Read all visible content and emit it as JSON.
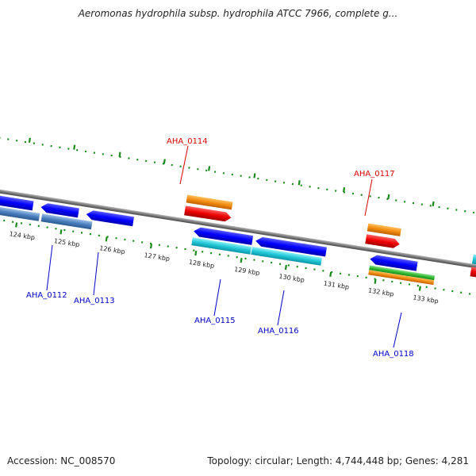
{
  "title": "Aeromonas hydrophila subsp. hydrophila ATCC 7966, complete g...",
  "footer": {
    "accession": "Accession: NC_008570",
    "summary": "Topology: circular; Length: 4,744,448 bp; Genes: 4,281"
  },
  "ticks": [
    "124 kbp",
    "125 kbp",
    "126 kbp",
    "127 kbp",
    "128 kbp",
    "129 kbp",
    "130 kbp",
    "131 kbp",
    "132 kbp",
    "133 kbp"
  ],
  "labels": {
    "blue": [
      "AHA_0112",
      "AHA_0113",
      "AHA_0115",
      "AHA_0116",
      "AHA_0118"
    ],
    "red": [
      "AHA_0114",
      "AHA_0117"
    ]
  },
  "colors": {
    "blue_gene": "#0000ff",
    "steel_gene": "#4a7fbf",
    "cyan_gene": "#22c8d8",
    "orange_gene": "#f28c10",
    "red_gene": "#ee0000",
    "green_gene": "#33bb33",
    "backbone": "#808080",
    "tick_green": "#1a8a1a",
    "blue_label": "#0000cc",
    "red_label": "#dd0000"
  }
}
